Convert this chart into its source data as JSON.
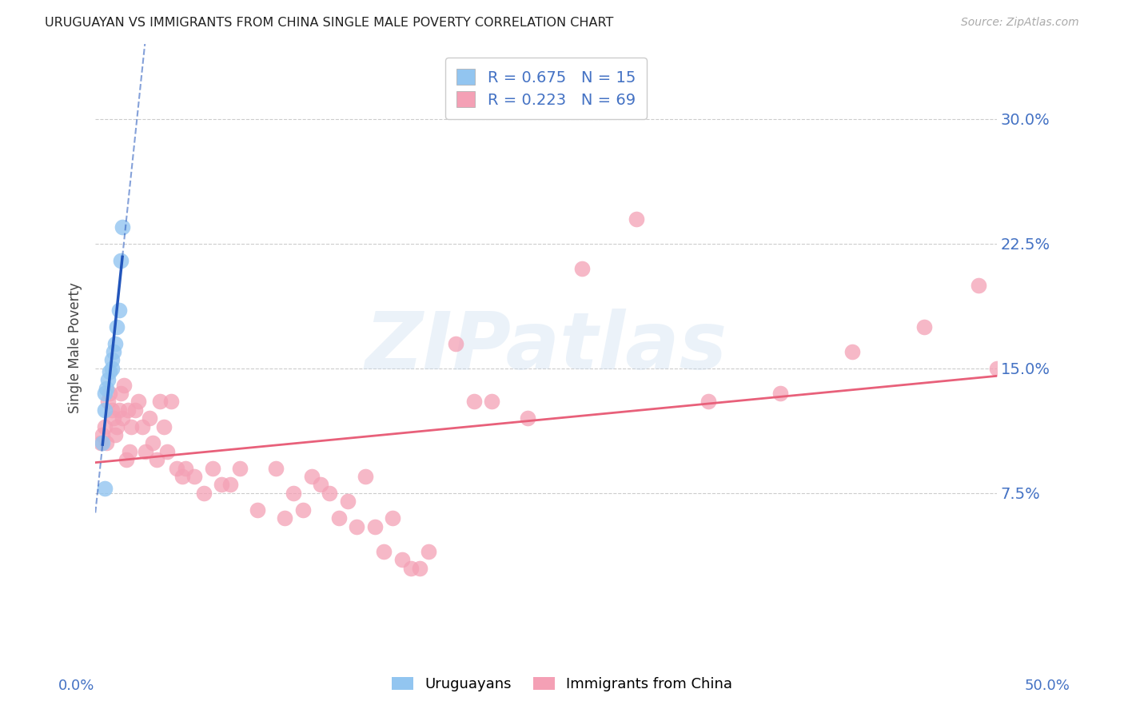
{
  "title": "URUGUAYAN VS IMMIGRANTS FROM CHINA SINGLE MALE POVERTY CORRELATION CHART",
  "source": "Source: ZipAtlas.com",
  "ylabel": "Single Male Poverty",
  "ytick_labels": [
    "30.0%",
    "22.5%",
    "15.0%",
    "7.5%"
  ],
  "ytick_values": [
    0.3,
    0.225,
    0.15,
    0.075
  ],
  "xlim": [
    0.0,
    0.5
  ],
  "ylim": [
    -0.02,
    0.345
  ],
  "uruguayan_color": "#92C5F0",
  "china_color": "#F4A0B5",
  "trendline_uru_color": "#2255BB",
  "trendline_china_color": "#E8607A",
  "watermark_text": "ZIPatlas",
  "legend_R_uru": "R = 0.675",
  "legend_N_uru": "N = 15",
  "legend_R_china": "R = 0.223",
  "legend_N_china": "N = 69",
  "uruguayan_x": [
    0.004,
    0.005,
    0.005,
    0.006,
    0.007,
    0.008,
    0.009,
    0.009,
    0.01,
    0.011,
    0.012,
    0.013,
    0.014,
    0.015,
    0.005
  ],
  "uruguayan_y": [
    0.105,
    0.125,
    0.135,
    0.138,
    0.143,
    0.148,
    0.15,
    0.155,
    0.16,
    0.165,
    0.175,
    0.185,
    0.215,
    0.235,
    0.078
  ],
  "china_x": [
    0.003,
    0.004,
    0.005,
    0.006,
    0.007,
    0.008,
    0.009,
    0.01,
    0.011,
    0.012,
    0.013,
    0.014,
    0.015,
    0.016,
    0.017,
    0.018,
    0.019,
    0.02,
    0.022,
    0.024,
    0.026,
    0.028,
    0.03,
    0.032,
    0.034,
    0.036,
    0.038,
    0.04,
    0.042,
    0.045,
    0.048,
    0.05,
    0.055,
    0.06,
    0.065,
    0.07,
    0.075,
    0.08,
    0.09,
    0.1,
    0.105,
    0.11,
    0.115,
    0.12,
    0.125,
    0.13,
    0.135,
    0.14,
    0.145,
    0.15,
    0.155,
    0.16,
    0.165,
    0.17,
    0.175,
    0.18,
    0.185,
    0.2,
    0.21,
    0.22,
    0.24,
    0.27,
    0.3,
    0.34,
    0.38,
    0.42,
    0.46,
    0.49,
    0.5
  ],
  "china_y": [
    0.105,
    0.11,
    0.115,
    0.105,
    0.13,
    0.135,
    0.125,
    0.12,
    0.11,
    0.115,
    0.125,
    0.135,
    0.12,
    0.14,
    0.095,
    0.125,
    0.1,
    0.115,
    0.125,
    0.13,
    0.115,
    0.1,
    0.12,
    0.105,
    0.095,
    0.13,
    0.115,
    0.1,
    0.13,
    0.09,
    0.085,
    0.09,
    0.085,
    0.075,
    0.09,
    0.08,
    0.08,
    0.09,
    0.065,
    0.09,
    0.06,
    0.075,
    0.065,
    0.085,
    0.08,
    0.075,
    0.06,
    0.07,
    0.055,
    0.085,
    0.055,
    0.04,
    0.06,
    0.035,
    0.03,
    0.03,
    0.04,
    0.165,
    0.13,
    0.13,
    0.12,
    0.21,
    0.24,
    0.13,
    0.135,
    0.16,
    0.175,
    0.2,
    0.15
  ]
}
